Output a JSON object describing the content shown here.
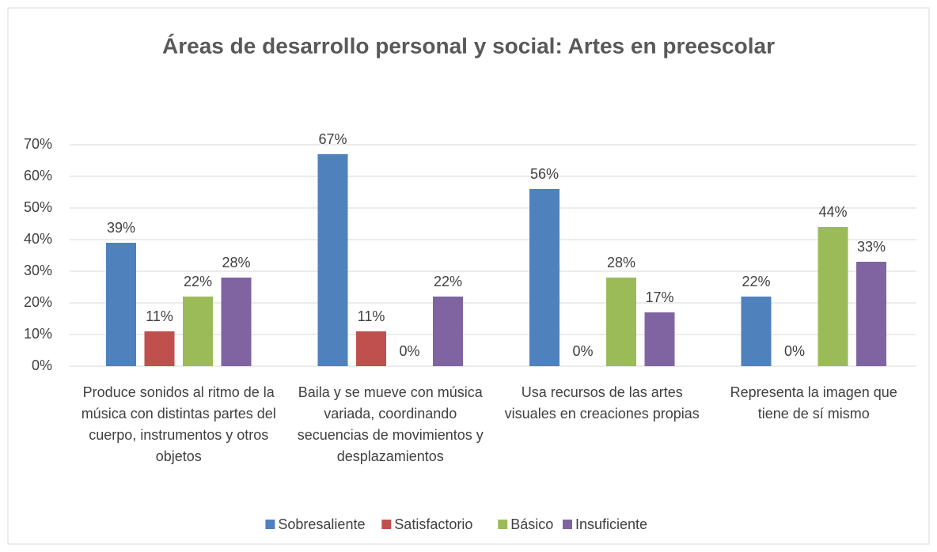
{
  "chart_data": {
    "type": "bar",
    "title": "Áreas de desarrollo personal y social: Artes en preescolar",
    "categories": [
      "Produce sonidos al ritmo de la música con distintas partes del cuerpo, instrumentos y otros objetos",
      "Baila y se mueve con música variada, coordinando secuencias de movimientos y desplazamientos",
      "Usa recursos de las artes visuales en creaciones propias",
      "Representa la imagen que tiene de sí mismo"
    ],
    "series": [
      {
        "name": "Sobresaliente",
        "color": "#4f81bd",
        "values": [
          39,
          67,
          56,
          22
        ],
        "value_labels": [
          "39%",
          "67%",
          "56%",
          "22%"
        ]
      },
      {
        "name": "Satisfactorio",
        "color": "#c0504d",
        "values": [
          11,
          11,
          0,
          0
        ],
        "value_labels": [
          "11%",
          "11%",
          "0%",
          "0%"
        ]
      },
      {
        "name": "Básico",
        "color": "#9bbb59",
        "values": [
          22,
          0,
          28,
          44
        ],
        "value_labels": [
          "22%",
          "0%",
          "28%",
          "44%"
        ]
      },
      {
        "name": "Insuficiente",
        "color": "#8064a2",
        "values": [
          28,
          22,
          17,
          33
        ],
        "value_labels": [
          "28%",
          "22%",
          "17%",
          "33%"
        ]
      }
    ],
    "ylim": [
      0,
      70
    ],
    "yticks": [
      {
        "value": 0,
        "label": "0%"
      },
      {
        "value": 10,
        "label": "10%"
      },
      {
        "value": 20,
        "label": "20%"
      },
      {
        "value": 30,
        "label": "30%"
      },
      {
        "value": 40,
        "label": "40%"
      },
      {
        "value": 50,
        "label": "50%"
      },
      {
        "value": 60,
        "label": "60%"
      },
      {
        "value": 70,
        "label": "70%"
      }
    ],
    "grid": true,
    "legend": "bottom"
  }
}
